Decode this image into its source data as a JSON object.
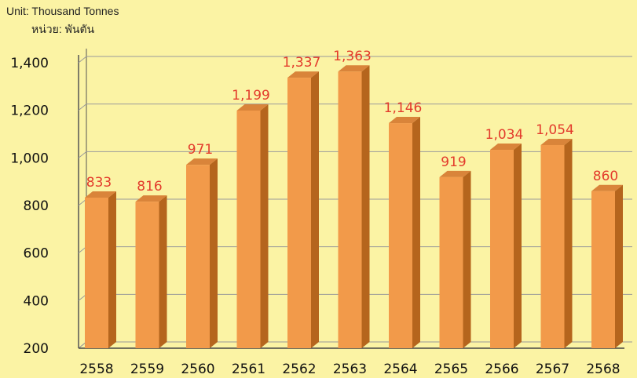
{
  "unit_label_en": "Unit: Thousand Tonnes",
  "unit_label_th": "หน่วย: พันตัน",
  "colors": {
    "background": "#fbf3a4",
    "bar_front": "#f29a4a",
    "bar_side": "#b5651d",
    "bar_top": "#d9843a",
    "data_label": "#e33b2c",
    "grid": "#9a9a9a"
  },
  "chart_data": {
    "type": "bar",
    "categories": [
      "2558",
      "2559",
      "2560",
      "2561",
      "2562",
      "2563",
      "2564",
      "2565",
      "2566",
      "2567",
      "2568"
    ],
    "values": [
      833,
      816,
      971,
      1199,
      1337,
      1363,
      1146,
      919,
      1034,
      1054,
      860
    ],
    "value_labels": [
      "833",
      "816",
      "971",
      "1,199",
      "1,337",
      "1,363",
      "1,146",
      "919",
      "1,034",
      "1,054",
      "860"
    ],
    "ylim": [
      200,
      1400
    ],
    "yticks": [
      200,
      400,
      600,
      800,
      1000,
      1200,
      1400
    ],
    "ytick_labels": [
      "200",
      "400",
      "600",
      "800",
      "1,000",
      "1,200",
      "1,400"
    ],
    "grid": true,
    "style": "3d-column"
  }
}
